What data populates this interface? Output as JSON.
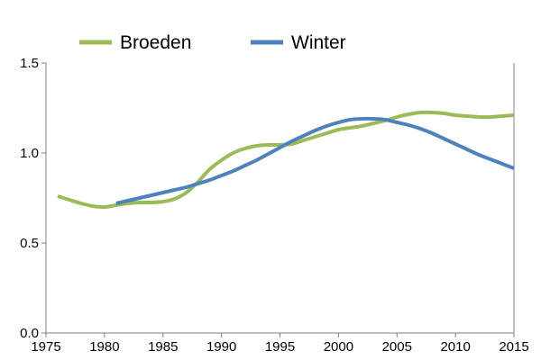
{
  "chart_data": {
    "type": "line",
    "title": "",
    "xlabel": "",
    "ylabel": "",
    "xlim": [
      1975,
      2015
    ],
    "ylim": [
      0.0,
      1.5
    ],
    "x_ticks": [
      1975,
      1980,
      1985,
      1990,
      1995,
      2000,
      2005,
      2010,
      2015
    ],
    "x_tick_labels": [
      "1975",
      "1980",
      "1985",
      "1990",
      "1995",
      "2000",
      "2005",
      "2010",
      "2015"
    ],
    "y_ticks": [
      0.0,
      0.5,
      1.0,
      1.5
    ],
    "y_tick_labels": [
      "0.0",
      "0.5",
      "1.0",
      "1.5"
    ],
    "grid": false,
    "legend_position": "top",
    "series": [
      {
        "name": "Broeden",
        "color": "#9BBB59",
        "x": [
          1976,
          1977,
          1978,
          1979,
          1980,
          1981,
          1982,
          1983,
          1984,
          1985,
          1986,
          1987,
          1988,
          1989,
          1990,
          1991,
          1992,
          1993,
          1994,
          1995,
          1996,
          1997,
          1998,
          1999,
          2000,
          2001,
          2002,
          2003,
          2004,
          2005,
          2006,
          2007,
          2008,
          2009,
          2010,
          2011,
          2012,
          2013,
          2014,
          2015
        ],
        "values": [
          0.76,
          0.74,
          0.72,
          0.705,
          0.7,
          0.71,
          0.72,
          0.725,
          0.725,
          0.73,
          0.745,
          0.78,
          0.84,
          0.91,
          0.96,
          1.0,
          1.025,
          1.04,
          1.045,
          1.045,
          1.05,
          1.07,
          1.09,
          1.11,
          1.13,
          1.14,
          1.15,
          1.165,
          1.18,
          1.2,
          1.215,
          1.225,
          1.225,
          1.22,
          1.21,
          1.205,
          1.2,
          1.2,
          1.205,
          1.21
        ]
      },
      {
        "name": "Winter",
        "color": "#4F81BD",
        "x": [
          1981,
          1982,
          1983,
          1984,
          1985,
          1986,
          1987,
          1988,
          1989,
          1990,
          1991,
          1992,
          1993,
          1994,
          1995,
          1996,
          1997,
          1998,
          1999,
          2000,
          2001,
          2002,
          2003,
          2004,
          2005,
          2006,
          2007,
          2008,
          2009,
          2010,
          2011,
          2012,
          2013,
          2014,
          2015
        ],
        "values": [
          0.72,
          0.735,
          0.75,
          0.765,
          0.78,
          0.795,
          0.81,
          0.83,
          0.85,
          0.875,
          0.9,
          0.93,
          0.96,
          0.995,
          1.03,
          1.065,
          1.095,
          1.125,
          1.15,
          1.17,
          1.185,
          1.19,
          1.19,
          1.185,
          1.17,
          1.155,
          1.135,
          1.11,
          1.08,
          1.05,
          1.02,
          0.99,
          0.965,
          0.94,
          0.915
        ]
      }
    ]
  }
}
